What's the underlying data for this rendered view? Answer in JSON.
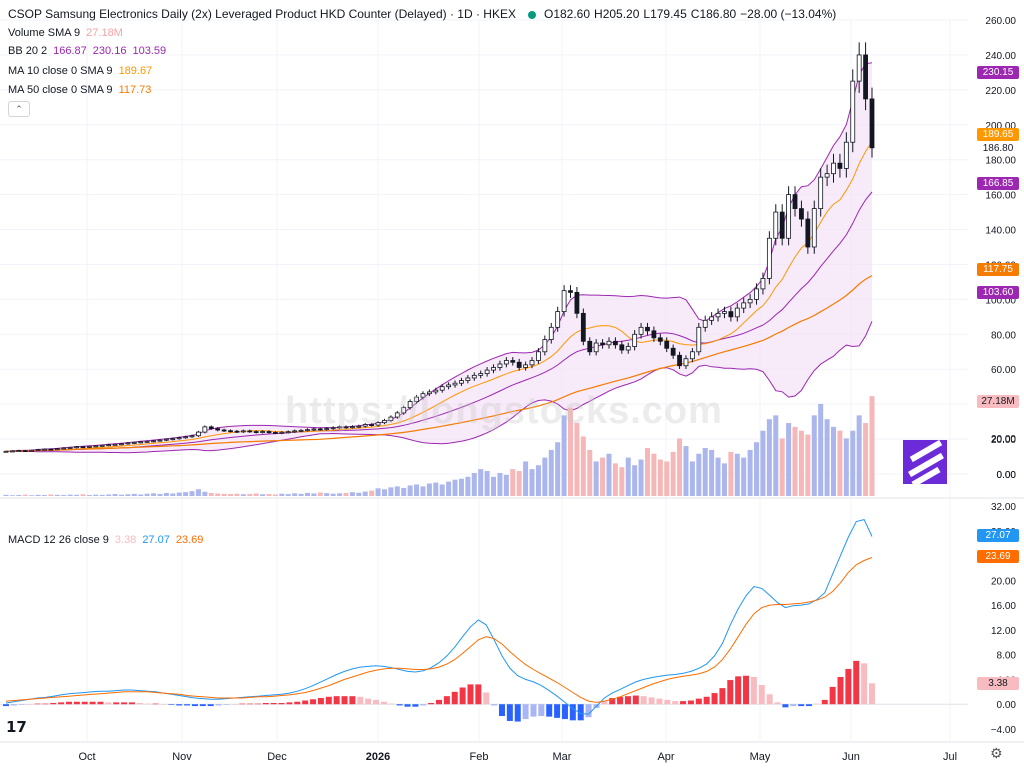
{
  "header": {
    "title": "CSOP Samsung Electronics Daily (2x) Leveraged Product HKD Counter (Delayed) · 1D · HKEX",
    "ohlc": {
      "o": "O182.60",
      "h": "H205.20",
      "l": "L179.45",
      "c": "C186.80",
      "chg": "−28.00 (−13.04%)"
    },
    "status_color": "#089981"
  },
  "legend": {
    "volume": {
      "label": "Volume SMA 9",
      "value": "27.18M"
    },
    "bb": {
      "label": "BB 20 2",
      "v1": "166.87",
      "v2": "230.16",
      "v3": "103.59"
    },
    "ma10": {
      "label": "MA 10 close 0 SMA 9",
      "value": "189.67"
    },
    "ma50": {
      "label": "MA 50 close 0 SMA 9",
      "value": "117.73"
    },
    "macd": {
      "label": "MACD 12 26 close 9",
      "hist": "3.38",
      "macd": "27.07",
      "signal": "23.69"
    }
  },
  "watermark": "https://longstocks.com",
  "price_tags": {
    "bb_upper": "230.15",
    "ma10": "189.65",
    "last": "186.80",
    "bb_basis": "166.85",
    "ma50": "117.75",
    "bb_lower": "103.60",
    "volume": "27.18M",
    "macd": "27.07",
    "signal": "23.69",
    "hist": "3.38"
  },
  "colors": {
    "up": "#089981",
    "candle_body_up": "#ffffff",
    "candle_border": "#131722",
    "bb": "#9c27b0",
    "bb_fill": "#f3e1f7",
    "ma10": "#ff9800",
    "ma50": "#f57c00",
    "vol_up": "#aab6ec",
    "vol_down": "#f5b7b7",
    "macd_line": "#2196f3",
    "signal_line": "#ff6d00",
    "hist_pos": "#f23645",
    "hist_pos_light": "#f8bcc0",
    "hist_neg": "#2962ff",
    "hist_neg_light": "#a9b6f5"
  },
  "chart_data": [
    {
      "type": "candlestick",
      "title": "CSOP Samsung Electronics Daily (2x) Leveraged Product HKD Counter (Delayed) · 1D · HKEX",
      "x_ticks": [
        "Oct",
        "Nov",
        "Dec",
        "2026",
        "Feb",
        "Mar",
        "Apr",
        "May",
        "Jun",
        "Jul"
      ],
      "y_ticks": [
        "260.00",
        "240.00",
        "220.00",
        "200.00",
        "180.00",
        "160.00",
        "140.00",
        "120.00",
        "100.00",
        "80.00",
        "60.00",
        "40.00",
        "20.00",
        "0.00"
      ],
      "ylim": [
        0,
        260
      ],
      "close": [
        13.0,
        13.2,
        13.4,
        13.3,
        13.6,
        14.0,
        14.2,
        14.1,
        14.5,
        14.9,
        15.2,
        15.6,
        15.4,
        15.8,
        16.1,
        16.4,
        16.8,
        17.0,
        17.3,
        17.8,
        18.1,
        18.4,
        18.7,
        19.0,
        19.4,
        19.9,
        20.2,
        20.8,
        21.3,
        21.9,
        24.0,
        27.0,
        26.0,
        25.2,
        24.8,
        24.5,
        24.2,
        24.7,
        24.3,
        23.9,
        24.3,
        23.8,
        23.5,
        23.9,
        24.2,
        24.7,
        25.0,
        25.4,
        25.8,
        25.6,
        26.0,
        26.5,
        27.0,
        26.8,
        27.1,
        27.4,
        28.3,
        28.0,
        29.4,
        30.7,
        32.6,
        35.0,
        38.0,
        41.5,
        44.0,
        46.0,
        47.0,
        48.0,
        50.0,
        51.0,
        52.0,
        53.5,
        55.0,
        56.5,
        57.5,
        59.5,
        61.0,
        63.0,
        65.0,
        64.0,
        61.0,
        62.5,
        65.0,
        70.0,
        77.0,
        84.0,
        93.0,
        105.0,
        104.0,
        92.0,
        76.0,
        70.0,
        75.0,
        74.0,
        76.0,
        74.0,
        71.0,
        73.0,
        80.0,
        84.0,
        82.0,
        78.0,
        76.0,
        72.0,
        68.0,
        62.0,
        66.0,
        70.0,
        84.0,
        88.0,
        90.0,
        92.0,
        93.0,
        90.0,
        95.0,
        98.0,
        100.0,
        106.0,
        112.0,
        135.0,
        150.0,
        135.0,
        160.0,
        152.0,
        146.0,
        130.0,
        152.0,
        170.0,
        172.0,
        178.0,
        175.0,
        190.0,
        225.0,
        240.0,
        214.8,
        186.8
      ],
      "ma10_last": 189.67,
      "ma50_last": 117.73,
      "bb": {
        "basis": 166.87,
        "upper": 230.16,
        "lower": 103.59
      },
      "last": {
        "open": 182.6,
        "high": 205.2,
        "low": 179.45,
        "close": 186.8,
        "change": -28.0,
        "change_pct": -13.04
      }
    },
    {
      "type": "bar",
      "name": "Volume",
      "sma9_last": "27.18M",
      "y_ticks": [
        "20.00",
        "0.00"
      ],
      "values": [
        0.6,
        0.4,
        0.5,
        0.7,
        0.4,
        0.6,
        0.5,
        0.8,
        0.6,
        0.5,
        0.7,
        0.6,
        0.9,
        0.5,
        0.7,
        0.6,
        0.8,
        1.0,
        0.7,
        0.9,
        1.1,
        0.8,
        1.2,
        1.4,
        1.1,
        1.6,
        1.3,
        1.8,
        2.0,
        2.5,
        3.5,
        2.2,
        1.6,
        1.3,
        1.1,
        1.0,
        1.2,
        0.9,
        1.1,
        1.3,
        0.9,
        1.0,
        0.8,
        1.2,
        1.0,
        1.4,
        1.1,
        1.6,
        1.3,
        1.8,
        1.5,
        1.2,
        1.4,
        1.6,
        2.0,
        1.7,
        2.3,
        2.8,
        4.0,
        3.5,
        4.5,
        5.0,
        4.2,
        5.5,
        6.0,
        5.0,
        6.5,
        7.0,
        6.0,
        7.5,
        8.5,
        9.0,
        10.0,
        12.0,
        14.0,
        13.0,
        10.0,
        12.0,
        11.0,
        14.0,
        13.0,
        18.0,
        14.0,
        16.0,
        20.0,
        24.0,
        28.0,
        42.0,
        46.0,
        38.0,
        31.0,
        24.0,
        18.0,
        20.0,
        22.0,
        17.0,
        15.0,
        20.0,
        16.0,
        19.0,
        25.0,
        22.0,
        19.0,
        18.0,
        23.0,
        30.0,
        26.0,
        18.0,
        22.0,
        25.0,
        24.0,
        20.0,
        17.0,
        23.0,
        22.0,
        20.0,
        24.0,
        28.0,
        34.0,
        40.0,
        42.0,
        30.0,
        38.0,
        36.0,
        34.0,
        32.0,
        42.0,
        48.0,
        40.0,
        36.0,
        34.0,
        30.0,
        34.0,
        42.0,
        38.0,
        52.0
      ]
    },
    {
      "type": "line",
      "name": "MACD 12 26 close 9",
      "y_ticks": [
        "32.00",
        "28.00",
        "24.00",
        "20.00",
        "16.00",
        "12.00",
        "8.00",
        "4.00",
        "0.00",
        "−4.00"
      ],
      "ylim": [
        -6,
        33
      ],
      "series": [
        {
          "name": "MACD",
          "values": [
            0.2,
            0.4,
            0.6,
            0.8,
            1.0,
            1.1,
            1.3,
            1.5,
            1.7,
            1.8,
            1.9,
            2.0,
            2.1,
            2.1,
            2.2,
            2.3,
            2.3,
            2.2,
            2.1,
            2.0,
            1.8,
            1.6,
            1.4,
            1.2,
            1.0,
            0.9,
            0.8,
            0.8,
            0.9,
            1.0,
            1.1,
            1.2,
            1.3,
            1.4,
            1.5,
            1.6,
            1.8,
            2.1,
            2.5,
            3.0,
            3.6,
            4.2,
            4.8,
            5.3,
            5.7,
            6.0,
            6.1,
            6.2,
            6.1,
            5.9,
            5.6,
            5.3,
            5.2,
            5.4,
            5.9,
            6.7,
            7.8,
            9.2,
            10.9,
            12.5,
            13.6,
            12.8,
            10.4,
            7.8,
            5.8,
            4.6,
            4.0,
            3.6,
            3.0,
            2.2,
            1.3,
            0.3,
            -0.7,
            -1.5,
            -1.6,
            -0.3,
            1.0,
            1.8,
            2.4,
            3.0,
            3.6,
            4.0,
            4.3,
            4.5,
            4.7,
            4.8,
            5.0,
            5.3,
            5.8,
            6.5,
            7.8,
            9.8,
            12.8,
            15.4,
            17.5,
            19.0,
            18.7,
            17.6,
            16.4,
            15.6,
            15.9,
            16.0,
            16.2,
            16.9,
            18.0,
            21.0,
            24.0,
            27.0,
            29.5,
            29.8,
            27.07
          ]
        },
        {
          "name": "Signal",
          "values": [
            0.5,
            0.6,
            0.7,
            0.8,
            0.9,
            1.0,
            1.1,
            1.2,
            1.3,
            1.4,
            1.5,
            1.6,
            1.7,
            1.8,
            1.9,
            2.0,
            2.0,
            2.0,
            2.0,
            1.9,
            1.8,
            1.7,
            1.6,
            1.4,
            1.3,
            1.2,
            1.1,
            1.0,
            1.0,
            1.0,
            1.0,
            1.1,
            1.2,
            1.2,
            1.3,
            1.4,
            1.5,
            1.7,
            1.9,
            2.2,
            2.6,
            3.0,
            3.5,
            4.0,
            4.4,
            4.8,
            5.2,
            5.5,
            5.7,
            5.8,
            5.8,
            5.7,
            5.6,
            5.6,
            5.7,
            6.0,
            6.5,
            7.2,
            8.2,
            9.3,
            10.4,
            10.9,
            10.6,
            9.7,
            8.5,
            7.4,
            6.4,
            5.6,
            4.9,
            4.2,
            3.5,
            2.7,
            1.9,
            1.1,
            0.5,
            0.3,
            0.5,
            0.8,
            1.2,
            1.7,
            2.2,
            2.7,
            3.2,
            3.6,
            4.0,
            4.3,
            4.5,
            4.7,
            4.9,
            5.3,
            6.0,
            7.2,
            8.9,
            10.9,
            12.9,
            14.6,
            15.6,
            16.0,
            16.1,
            16.1,
            16.2,
            16.3,
            16.5,
            16.8,
            17.3,
            18.2,
            19.6,
            21.3,
            22.5,
            23.2,
            23.69
          ]
        }
      ],
      "histogram": [
        -0.3,
        -0.2,
        -0.1,
        0.0,
        0.1,
        0.1,
        0.2,
        0.3,
        0.4,
        0.4,
        0.4,
        0.4,
        0.4,
        0.3,
        0.3,
        0.3,
        0.3,
        0.2,
        0.1,
        0.1,
        0.0,
        -0.1,
        -0.2,
        -0.2,
        -0.3,
        -0.3,
        -0.3,
        -0.2,
        -0.1,
        0.0,
        0.1,
        0.1,
        0.1,
        0.2,
        0.2,
        0.2,
        0.3,
        0.4,
        0.6,
        0.8,
        1.0,
        1.2,
        1.3,
        1.3,
        1.3,
        1.2,
        0.9,
        0.7,
        0.4,
        0.1,
        -0.2,
        -0.4,
        -0.4,
        -0.2,
        0.2,
        0.7,
        1.3,
        2.0,
        2.7,
        3.2,
        3.2,
        1.9,
        -0.2,
        -1.9,
        -2.7,
        -2.8,
        -2.4,
        -2.0,
        -1.9,
        -2.0,
        -2.2,
        -2.4,
        -2.6,
        -2.6,
        -2.1,
        -0.6,
        0.5,
        1.0,
        1.2,
        1.3,
        1.4,
        1.3,
        1.1,
        0.9,
        0.7,
        0.5,
        0.5,
        0.6,
        0.9,
        1.2,
        1.8,
        2.6,
        3.9,
        4.5,
        4.6,
        4.4,
        3.1,
        1.6,
        0.3,
        -0.5,
        -0.3,
        -0.3,
        -0.3,
        0.1,
        0.7,
        2.8,
        4.4,
        5.7,
        7.0,
        6.6,
        3.38
      ]
    }
  ]
}
